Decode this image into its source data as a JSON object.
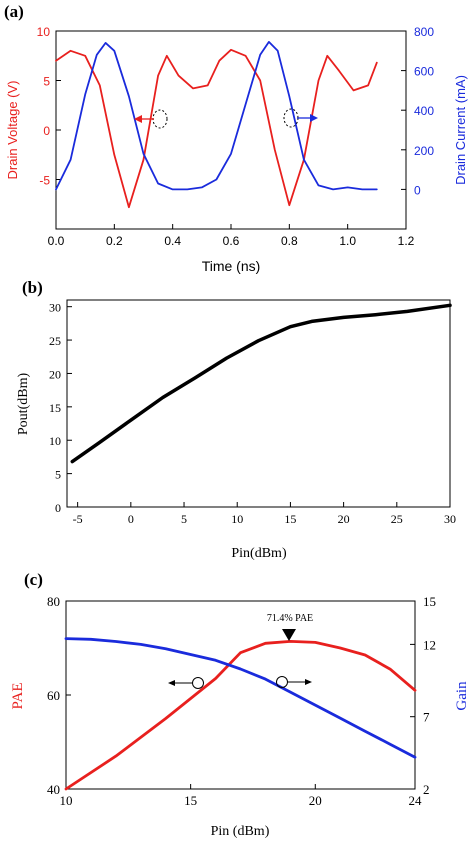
{
  "panels": [
    {
      "label": "(a)",
      "chart_data": {
        "type": "line",
        "xlabel": "Time (ns)",
        "xlim": [
          0,
          1.2
        ],
        "x_ticks": [
          "0.0",
          "0.2",
          "0.4",
          "0.6",
          "0.8",
          "1.0",
          "1.2"
        ],
        "y_left": {
          "label": "Drain Voltage (V)",
          "lim": [
            -10,
            10
          ],
          "ticks": [
            "-5",
            "0",
            "5",
            "10"
          ],
          "color": "#e8201e"
        },
        "y_right": {
          "label": "Drain Current (mA)",
          "lim": [
            -200,
            800
          ],
          "ticks": [
            "0",
            "200",
            "400",
            "600",
            "800"
          ],
          "color": "#1a2bdc"
        },
        "series": [
          {
            "axis": "left",
            "color": "#e8201e",
            "x": [
              0.0,
              0.05,
              0.1,
              0.15,
              0.2,
              0.25,
              0.3,
              0.35,
              0.38,
              0.42,
              0.47,
              0.52,
              0.56,
              0.6,
              0.65,
              0.7,
              0.75,
              0.8,
              0.85,
              0.9,
              0.93,
              0.97,
              1.02,
              1.07,
              1.1
            ],
            "values": [
              7.0,
              8.0,
              7.5,
              4.5,
              -2.5,
              -7.8,
              -3.0,
              5.5,
              7.5,
              5.5,
              4.2,
              4.5,
              7.0,
              8.1,
              7.5,
              5.0,
              -2.0,
              -7.6,
              -3.0,
              5.0,
              7.5,
              6.0,
              4.0,
              4.5,
              6.8
            ]
          },
          {
            "axis": "right",
            "color": "#1a2bdc",
            "x": [
              0.0,
              0.05,
              0.1,
              0.14,
              0.17,
              0.2,
              0.25,
              0.3,
              0.35,
              0.4,
              0.45,
              0.5,
              0.55,
              0.6,
              0.65,
              0.7,
              0.73,
              0.76,
              0.8,
              0.85,
              0.9,
              0.95,
              1.0,
              1.05,
              1.1
            ],
            "values": [
              0,
              150,
              480,
              680,
              740,
              700,
              470,
              180,
              30,
              0,
              0,
              10,
              50,
              180,
              430,
              680,
              745,
              700,
              470,
              150,
              20,
              0,
              10,
              0,
              0
            ]
          }
        ]
      }
    },
    {
      "label": "(b)",
      "chart_data": {
        "type": "line",
        "xlabel": "Pin(dBm)",
        "ylabel": "Pout(dBm)",
        "xlim": [
          -6,
          30
        ],
        "ylim": [
          0,
          31
        ],
        "x_ticks": [
          "-5",
          "0",
          "5",
          "10",
          "15",
          "20",
          "25",
          "30"
        ],
        "y_ticks": [
          "0",
          "5",
          "10",
          "15",
          "20",
          "25",
          "30"
        ],
        "series": [
          {
            "color": "#000000",
            "x": [
              -5.5,
              -3,
              0,
              3,
              6,
              9,
              12,
              15,
              17,
              20,
              23,
              26,
              30
            ],
            "values": [
              6.8,
              9.6,
              13.0,
              16.4,
              19.3,
              22.3,
              24.9,
              27.0,
              27.8,
              28.4,
              28.8,
              29.3,
              30.2
            ]
          }
        ]
      }
    },
    {
      "label": "(c)",
      "chart_data": {
        "type": "line",
        "xlabel": "Pin (dBm)",
        "xlim": [
          10,
          24
        ],
        "x_ticks": [
          "10",
          "15",
          "20",
          "24"
        ],
        "y_left": {
          "label": "PAE",
          "lim": [
            40,
            80
          ],
          "ticks": [
            "40",
            "60",
            "80"
          ],
          "color": "#e8201e"
        },
        "y_right": {
          "label": "Gain",
          "lim": [
            2,
            15
          ],
          "ticks": [
            "2",
            "7",
            "12",
            "15"
          ],
          "color": "#1a2bdc"
        },
        "annotation": "71.4% PAE",
        "series": [
          {
            "axis": "left",
            "color": "#e8201e",
            "x": [
              10,
              12,
              14,
              16,
              17,
              18,
              19,
              20,
              21,
              22,
              23,
              24
            ],
            "values": [
              40,
              47,
              55,
              63.5,
              69,
              71,
              71.4,
              71.2,
              70,
              68.5,
              65.5,
              61
            ]
          },
          {
            "axis": "right",
            "color": "#1a2bdc",
            "x": [
              10,
              11,
              12,
              13,
              14,
              15,
              16,
              17,
              18,
              19,
              20,
              21,
              22,
              23,
              24
            ],
            "values": [
              12.4,
              12.35,
              12.2,
              12.0,
              11.7,
              11.3,
              10.9,
              10.3,
              9.6,
              8.7,
              7.8,
              6.9,
              6.0,
              5.1,
              4.2
            ]
          }
        ]
      }
    }
  ]
}
